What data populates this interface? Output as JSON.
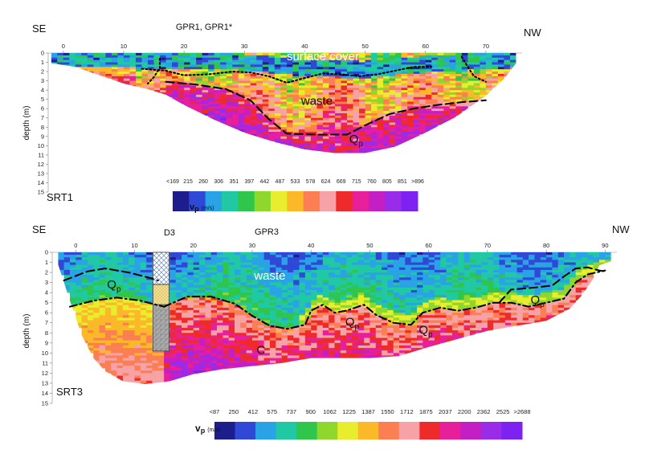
{
  "chart_data": [
    {
      "type": "heatmap",
      "id": "SRT1",
      "label": "SRT1",
      "left_label": "SE",
      "right_label": "NW",
      "top_label": "GPR1, GPR1*",
      "ylabel": "depth (m)",
      "x_ticks": [
        0,
        10,
        20,
        30,
        40,
        50,
        60,
        70
      ],
      "xlim": [
        -2.5,
        76
      ],
      "y_ticks": [
        0,
        1,
        2,
        3,
        4,
        5,
        6,
        7,
        8,
        9,
        10,
        11,
        12,
        13,
        14,
        15
      ],
      "ylim": [
        0,
        15
      ],
      "annotations": [
        {
          "text": "surface cover",
          "x": 43,
          "y": 0.8,
          "color": "#ffffff"
        },
        {
          "text": "waste",
          "x": 42,
          "y": 5.6,
          "color": "#111111"
        },
        {
          "text": "Q",
          "sub": "p",
          "x": 48.5,
          "y": 9.7,
          "color": "#111111"
        }
      ],
      "profile_bottom": [
        [
          -2,
          1.1
        ],
        [
          2,
          1.5
        ],
        [
          6,
          2.4
        ],
        [
          10,
          3.3
        ],
        [
          14,
          3.9
        ],
        [
          17,
          4.5
        ],
        [
          20,
          5.6
        ],
        [
          25,
          7.2
        ],
        [
          30,
          8.6
        ],
        [
          35,
          9.6
        ],
        [
          40,
          10.4
        ],
        [
          45,
          10.8
        ],
        [
          50,
          10.8
        ],
        [
          55,
          10.1
        ],
        [
          60,
          8.6
        ],
        [
          65,
          6.9
        ],
        [
          70,
          4.6
        ],
        [
          73,
          2.8
        ],
        [
          75,
          1.1
        ]
      ],
      "interfaces": [
        {
          "kind": "dotted",
          "points": [
            [
              13,
              1.7
            ],
            [
              17,
              1.9
            ],
            [
              20,
              2.4
            ],
            [
              24,
              2.3
            ],
            [
              28,
              2.0
            ],
            [
              31,
              2.1
            ],
            [
              34,
              2.5
            ],
            [
              37,
              3.2
            ],
            [
              40,
              2.7
            ],
            [
              43,
              2.2
            ],
            [
              46,
              2.3
            ],
            [
              49,
              2.5
            ],
            [
              52,
              2.3
            ],
            [
              55,
              1.9
            ],
            [
              58,
              1.5
            ],
            [
              61,
              1.5
            ]
          ]
        },
        {
          "kind": "dashed",
          "points": [
            [
              17,
              3.1
            ],
            [
              22,
              3.4
            ],
            [
              27,
              3.9
            ],
            [
              31,
              5.1
            ],
            [
              34,
              7.1
            ],
            [
              37,
              8.7
            ],
            [
              42,
              8.8
            ],
            [
              47,
              8.8
            ],
            [
              50,
              7.8
            ],
            [
              54,
              6.6
            ],
            [
              58,
              6.0
            ],
            [
              62,
              5.6
            ],
            [
              66,
              5.3
            ],
            [
              70,
              5.1
            ]
          ]
        },
        {
          "kind": "dotted",
          "points": [
            [
              66,
              0.4
            ],
            [
              67,
              1.5
            ],
            [
              68,
              2.5
            ],
            [
              70,
              3.1
            ]
          ]
        },
        {
          "kind": "dotted",
          "points": [
            [
              16,
              0.6
            ],
            [
              16,
              1.6
            ],
            [
              15,
              2.6
            ],
            [
              14,
              3.3
            ]
          ]
        }
      ],
      "layers": [
        {
          "name": "surface cover",
          "centre": [
            [
              -2,
              0.6
            ],
            [
              20,
              0.8
            ],
            [
              30,
              1.0
            ],
            [
              40,
              1.6
            ],
            [
              50,
              1.8
            ],
            [
              60,
              1.2
            ],
            [
              75,
              0.7
            ]
          ],
          "thickness": 1.8,
          "vp": 380
        },
        {
          "name": "waste",
          "vp": 540
        },
        {
          "name": "Qp",
          "vp": 690
        }
      ],
      "colorbar": {
        "label": "v",
        "label_sub": "p",
        "unit": "(m/s)",
        "tick_labels": [
          "<169",
          "215",
          "260",
          "306",
          "351",
          "397",
          "442",
          "487",
          "533",
          "578",
          "624",
          "669",
          "715",
          "760",
          "805",
          "851",
          ">896"
        ],
        "min": 169,
        "max": 896
      }
    },
    {
      "type": "heatmap",
      "id": "SRT3",
      "label": "SRT3",
      "left_label": "SE",
      "right_label": "NW",
      "top_label": "GPR3",
      "borehole_label": "D3",
      "ylabel": "depth (m)",
      "x_ticks": [
        0,
        10,
        20,
        30,
        40,
        50,
        60,
        70,
        80,
        90
      ],
      "xlim": [
        -4,
        92
      ],
      "y_ticks": [
        0,
        1,
        2,
        3,
        4,
        5,
        6,
        7,
        8,
        9,
        10,
        11,
        12,
        13,
        14,
        15
      ],
      "ylim": [
        0,
        15
      ],
      "annotations": [
        {
          "text": "waste",
          "x": 33,
          "y": 2.7,
          "color": "#ffffff"
        },
        {
          "text": "Q",
          "sub": "p",
          "x": 6.5,
          "y": 3.6,
          "color": "#111111"
        },
        {
          "text": "Q",
          "sub": "p",
          "x": 47,
          "y": 7.3,
          "color": "#111111"
        },
        {
          "text": "Q",
          "sub": "p",
          "x": 59.5,
          "y": 8.1,
          "color": "#111111"
        },
        {
          "text": "Q",
          "sub": "p",
          "x": 78.5,
          "y": 5.1,
          "color": "#111111"
        },
        {
          "text": "C",
          "x": 31.5,
          "y": 10.1,
          "color": "#111111"
        }
      ],
      "profile_bottom": [
        [
          -3,
          1.2
        ],
        [
          -1,
          4.8
        ],
        [
          1,
          8.2
        ],
        [
          3,
          10.5
        ],
        [
          5,
          11.8
        ],
        [
          8,
          12.8
        ],
        [
          12,
          13.1
        ],
        [
          16,
          12.8
        ],
        [
          20,
          12.1
        ],
        [
          25,
          11.6
        ],
        [
          30,
          11.3
        ],
        [
          35,
          11.0
        ],
        [
          40,
          10.5
        ],
        [
          50,
          10.5
        ],
        [
          55,
          10.3
        ],
        [
          60,
          9.4
        ],
        [
          65,
          8.6
        ],
        [
          70,
          7.8
        ],
        [
          75,
          7.3
        ],
        [
          80,
          6.8
        ],
        [
          84,
          5.6
        ],
        [
          86,
          4.3
        ],
        [
          88,
          2.6
        ],
        [
          89,
          1.3
        ],
        [
          91,
          0.9
        ]
      ],
      "interfaces": [
        {
          "kind": "dashed",
          "points": [
            [
              -2,
              2.8
            ],
            [
              2,
              1.9
            ],
            [
              5,
              1.6
            ],
            [
              9,
              2.0
            ],
            [
              13,
              2.6
            ],
            [
              14,
              2.8
            ]
          ]
        },
        {
          "kind": "dashdot",
          "points": [
            [
              -1,
              5.4
            ],
            [
              3,
              4.8
            ],
            [
              7,
              4.5
            ],
            [
              11,
              4.8
            ],
            [
              15,
              5.4
            ]
          ]
        },
        {
          "kind": "dashdot",
          "points": [
            [
              15,
              5.4
            ],
            [
              19,
              4.4
            ],
            [
              23,
              4.4
            ],
            [
              27,
              5.1
            ],
            [
              30,
              6.3
            ],
            [
              33,
              7.3
            ],
            [
              36,
              7.6
            ],
            [
              39,
              7.2
            ],
            [
              40,
              5.8
            ],
            [
              42,
              5.2
            ],
            [
              44,
              6.0
            ],
            [
              46,
              5.8
            ],
            [
              49,
              5.2
            ],
            [
              51,
              6.2
            ],
            [
              54,
              7.0
            ],
            [
              57,
              7.2
            ],
            [
              59,
              6.0
            ],
            [
              62,
              5.5
            ],
            [
              65,
              5.8
            ],
            [
              68,
              5.5
            ],
            [
              71,
              5.0
            ],
            [
              74,
              5.0
            ],
            [
              77,
              5.4
            ],
            [
              80,
              5.0
            ],
            [
              83,
              4.6
            ],
            [
              85,
              3.0
            ],
            [
              87,
              2.2
            ],
            [
              90,
              1.8
            ]
          ]
        },
        {
          "kind": "dashed",
          "points": [
            [
              72,
              5.0
            ],
            [
              74,
              3.7
            ],
            [
              78,
              3.5
            ],
            [
              81,
              3.3
            ],
            [
              83,
              2.4
            ],
            [
              85,
              1.6
            ],
            [
              87,
              1.5
            ],
            [
              89,
              1.8
            ],
            [
              90,
              1.9
            ]
          ]
        }
      ],
      "layers": [
        {
          "name": "waste",
          "vp": 500
        },
        {
          "name": "Qp",
          "vp": 1230
        },
        {
          "name": "C",
          "vp": 1900
        }
      ],
      "borehole": {
        "x": 14.5,
        "segments": [
          {
            "from": 0,
            "to": 3.2,
            "fill": "crosshatch"
          },
          {
            "from": 3.2,
            "to": 5.2,
            "fill": "sand"
          },
          {
            "from": 5.2,
            "to": 9.8,
            "fill": "gravel"
          }
        ]
      },
      "colorbar": {
        "label": "v",
        "label_sub": "p",
        "unit": "(m/s)",
        "tick_labels": [
          "<87",
          "250",
          "412",
          "575",
          "737",
          "900",
          "1062",
          "1225",
          "1387",
          "1550",
          "1712",
          "1875",
          "2037",
          "2200",
          "2362",
          "2525",
          ">2688"
        ],
        "min": 87,
        "max": 2688
      }
    }
  ],
  "colors": {
    "palette": [
      "#1d1d8e",
      "#2f49d6",
      "#2aa3e6",
      "#20c8a4",
      "#2fc64b",
      "#8fd62d",
      "#e8ee2d",
      "#fbb829",
      "#fb7f52",
      "#f7a2a6",
      "#ef2a2a",
      "#e81f9b",
      "#c41fc4",
      "#9a2be8",
      "#7d22f0"
    ],
    "outside": "#ffffff",
    "text": "#111111",
    "borehole_edge": "#444444"
  }
}
